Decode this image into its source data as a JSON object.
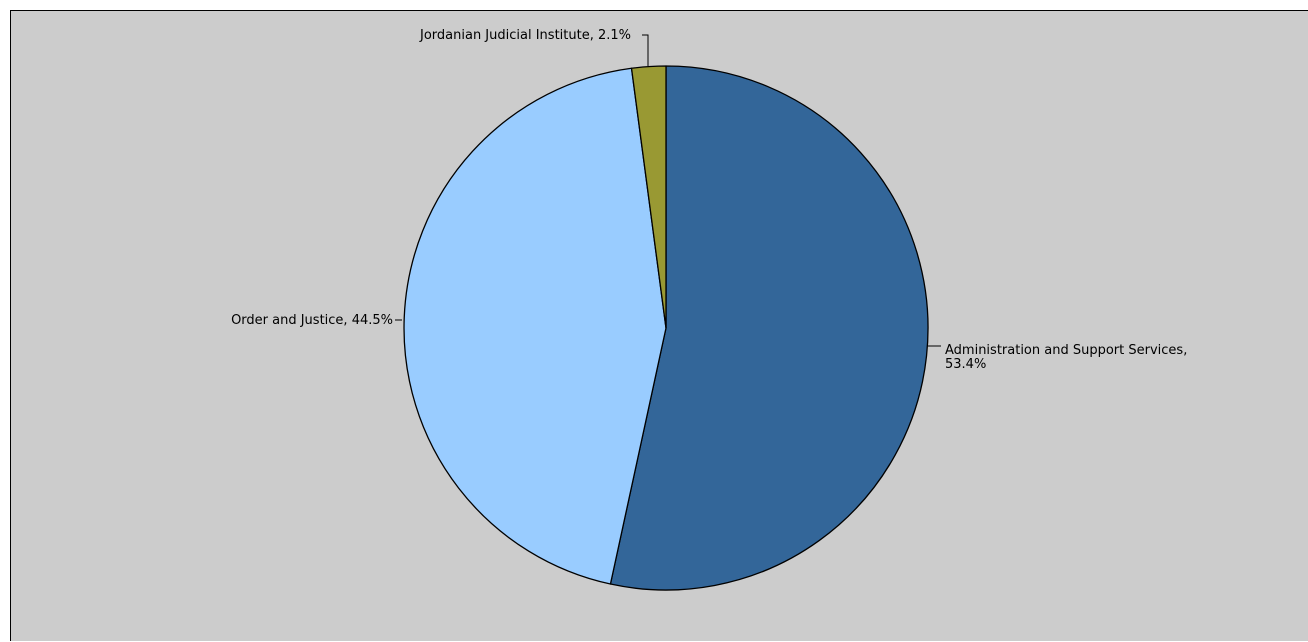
{
  "chart_data": {
    "type": "pie",
    "title": "",
    "start": "top",
    "direction": "clockwise",
    "slices": [
      {
        "name": "Administration and Support Services",
        "label_line1": "Administration and Support Services,",
        "label_line2": "53.4%",
        "value": 53.4,
        "color": "#336699"
      },
      {
        "name": "Order and Justice",
        "label_line1": "Order and Justice, 44.5%",
        "label_line2": "",
        "value": 44.5,
        "color": "#99ccff"
      },
      {
        "name": "Jordanian Judicial Institute",
        "label_line1": "Jordanian Judicial Institute, 2.1%",
        "label_line2": "",
        "value": 2.1,
        "color": "#999933"
      }
    ]
  }
}
